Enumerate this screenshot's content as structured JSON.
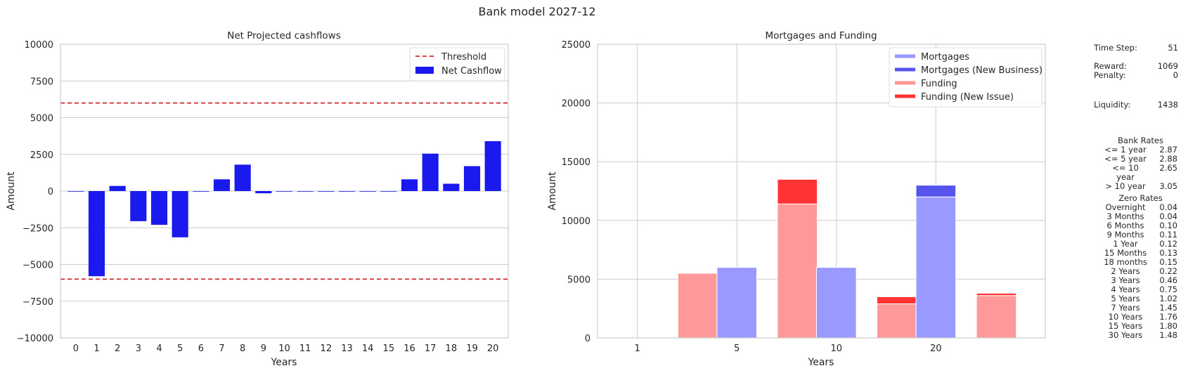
{
  "figure_title": "Bank model 2027-12",
  "chart_data": [
    {
      "type": "bar",
      "title": "Net Projected cashflows",
      "xlabel": "Years",
      "ylabel": "Amount",
      "ylim": [
        -10000,
        10000
      ],
      "yticks": [
        -10000,
        -7500,
        -5000,
        -2500,
        0,
        2500,
        5000,
        7500,
        10000
      ],
      "ytick_labels": [
        "−10000",
        "−7500",
        "−5000",
        "−2500",
        "0",
        "2500",
        "5000",
        "7500",
        "10000"
      ],
      "categories": [
        "0",
        "1",
        "2",
        "3",
        "4",
        "5",
        "6",
        "7",
        "8",
        "9",
        "10",
        "11",
        "12",
        "13",
        "14",
        "15",
        "16",
        "17",
        "18",
        "19",
        "20"
      ],
      "series": [
        {
          "name": "Net Cashflow",
          "color": "#0000ff",
          "values": [
            0,
            -5800,
            350,
            -2050,
            -2300,
            -3150,
            0,
            800,
            1800,
            -150,
            0,
            0,
            0,
            0,
            0,
            0,
            800,
            2550,
            500,
            1700,
            3400
          ]
        }
      ],
      "threshold": {
        "name": "Threshold",
        "values": [
          6000,
          -6000
        ],
        "color": "#d62728"
      },
      "grid": true,
      "legend": "top-right"
    },
    {
      "type": "bar",
      "title": "Mortgages and Funding",
      "xlabel": "Years",
      "ylabel": "Amount",
      "ylim": [
        0,
        25000
      ],
      "yticks": [
        0,
        5000,
        10000,
        15000,
        20000,
        25000
      ],
      "ytick_labels": [
        "0",
        "5000",
        "10000",
        "15000",
        "20000",
        "25000"
      ],
      "categories": [
        "1",
        "5",
        "10",
        "20"
      ],
      "stacked": true,
      "series": [
        {
          "name": "Mortgages",
          "color": "#9999ff",
          "values": [
            0,
            6000,
            6000,
            12000
          ]
        },
        {
          "name": "Mortgages (New Business)",
          "color": "#5555ee",
          "values": [
            0,
            0,
            0,
            1000
          ]
        },
        {
          "name": "Funding",
          "color": "#ff9999",
          "values": [
            5500,
            11400,
            2900,
            3600
          ]
        },
        {
          "name": "Funding (New Issue)",
          "color": "#ff3333",
          "values": [
            0,
            2100,
            600,
            200
          ]
        }
      ],
      "grid": true,
      "legend": "top-right"
    }
  ],
  "stats": {
    "time_step_label": "Time Step:",
    "time_step_value": "51",
    "reward_label": "Reward:",
    "reward_value": "1069",
    "penalty_label": "Penalty:",
    "penalty_value": "0",
    "liquidity_label": "Liquidity:",
    "liquidity_value": "1438"
  },
  "bank_rates": {
    "title": "Bank Rates",
    "rows": [
      {
        "label": "<= 1 year",
        "value": "2.87"
      },
      {
        "label": "<= 5 year",
        "value": "2.88"
      },
      {
        "label": "<= 10 year",
        "value": "2.65"
      },
      {
        "label": "> 10 year",
        "value": "3.05"
      }
    ]
  },
  "zero_rates": {
    "title": "Zero Rates",
    "rows": [
      {
        "label": "Overnight",
        "value": "0.04"
      },
      {
        "label": "3 Months",
        "value": "0.04"
      },
      {
        "label": "6 Months",
        "value": "0.10"
      },
      {
        "label": "9 Months",
        "value": "0.11"
      },
      {
        "label": "1 Year",
        "value": "0.12"
      },
      {
        "label": "15 Months",
        "value": "0.13"
      },
      {
        "label": "18 months",
        "value": "0.15"
      },
      {
        "label": "2 Years",
        "value": "0.22"
      },
      {
        "label": "3 Years",
        "value": "0.46"
      },
      {
        "label": "4 Years",
        "value": "0.75"
      },
      {
        "label": "5 Years",
        "value": "1.02"
      },
      {
        "label": "7 Years",
        "value": "1.45"
      },
      {
        "label": "10 Years",
        "value": "1.76"
      },
      {
        "label": "15 Years",
        "value": "1.80"
      },
      {
        "label": "30 Years",
        "value": "1.48"
      }
    ]
  }
}
